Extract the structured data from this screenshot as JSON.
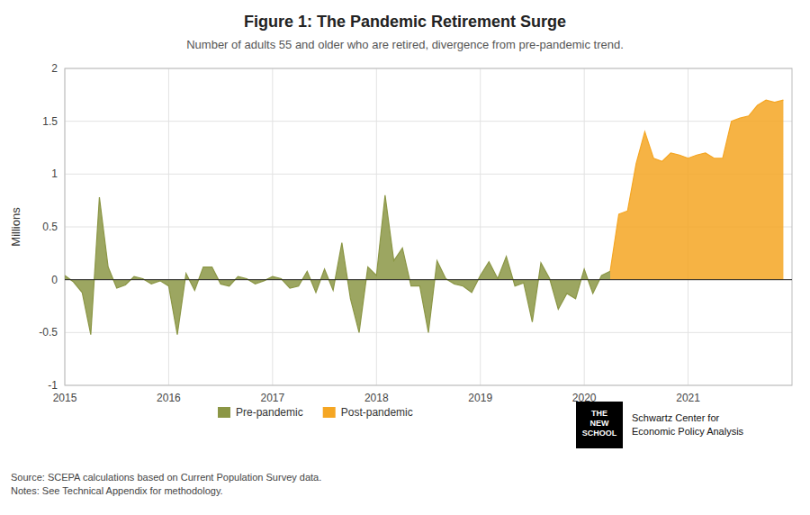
{
  "chart_data": {
    "type": "area",
    "title": "Figure 1: The Pandemic Retirement Surge",
    "subtitle": "Number of adults 55 and older who are retired, divergence from pre-pandemic trend.",
    "y_label": "Millions",
    "annotations": [
      "THE\nNEW\nSCHOOL",
      "Schwartz Center for",
      "Economic Policy Analysis",
      "Source: SCEPA calculations based on Current Population Survey data.\nNotes: See Technical Appendix for methodology."
    ],
    "xlim": [
      2015.0,
      2022.0
    ],
    "xticks": [
      2015,
      2016,
      2017,
      2018,
      2019,
      2020,
      2021
    ],
    "ylim": [
      -1,
      2
    ],
    "yticks": [
      -1,
      -0.5,
      0,
      0.5,
      1,
      1.5,
      2
    ],
    "grid": true,
    "legend": "bottom",
    "series": [
      {
        "name": "Pre-pandemic",
        "color": "#8B9645",
        "x": [
          2015.0,
          2015.083,
          2015.167,
          2015.25,
          2015.333,
          2015.417,
          2015.5,
          2015.583,
          2015.667,
          2015.75,
          2015.833,
          2015.917,
          2016.0,
          2016.083,
          2016.167,
          2016.25,
          2016.333,
          2016.417,
          2016.5,
          2016.583,
          2016.667,
          2016.75,
          2016.833,
          2016.917,
          2017.0,
          2017.083,
          2017.167,
          2017.25,
          2017.333,
          2017.417,
          2017.5,
          2017.583,
          2017.667,
          2017.75,
          2017.833,
          2017.917,
          2018.0,
          2018.083,
          2018.167,
          2018.25,
          2018.333,
          2018.417,
          2018.5,
          2018.583,
          2018.667,
          2018.75,
          2018.833,
          2018.917,
          2019.0,
          2019.083,
          2019.167,
          2019.25,
          2019.333,
          2019.417,
          2019.5,
          2019.583,
          2019.667,
          2019.75,
          2019.833,
          2019.917,
          2020.0,
          2020.083,
          2020.167,
          2020.25
        ],
        "values": [
          0.04,
          -0.02,
          -0.12,
          -0.52,
          0.78,
          0.12,
          -0.08,
          -0.05,
          0.03,
          0.01,
          -0.04,
          -0.01,
          -0.06,
          -0.52,
          0.06,
          -0.1,
          0.12,
          0.12,
          -0.04,
          -0.06,
          0.03,
          0.01,
          -0.04,
          -0.01,
          0.03,
          0.01,
          -0.08,
          -0.06,
          0.08,
          -0.12,
          0.1,
          -0.1,
          0.35,
          -0.18,
          -0.5,
          0.12,
          0.04,
          0.8,
          0.18,
          0.3,
          -0.06,
          -0.06,
          -0.5,
          0.18,
          0.01,
          -0.04,
          -0.06,
          -0.12,
          0.04,
          0.17,
          0.01,
          0.22,
          -0.06,
          -0.03,
          -0.4,
          0.16,
          0.01,
          -0.28,
          -0.13,
          -0.18,
          0.1,
          -0.13,
          0.04,
          0.08
        ]
      },
      {
        "name": "Post-pandemic",
        "color": "#F5A623",
        "x": [
          2020.25,
          2020.333,
          2020.417,
          2020.5,
          2020.583,
          2020.667,
          2020.75,
          2020.833,
          2020.917,
          2021.0,
          2021.083,
          2021.167,
          2021.25,
          2021.333,
          2021.417,
          2021.5,
          2021.583,
          2021.667,
          2021.75,
          2021.833,
          2021.917
        ],
        "values": [
          0.08,
          0.62,
          0.65,
          1.1,
          1.4,
          1.15,
          1.12,
          1.2,
          1.18,
          1.15,
          1.18,
          1.2,
          1.15,
          1.15,
          1.5,
          1.53,
          1.55,
          1.65,
          1.7,
          1.68,
          1.7
        ]
      }
    ]
  }
}
